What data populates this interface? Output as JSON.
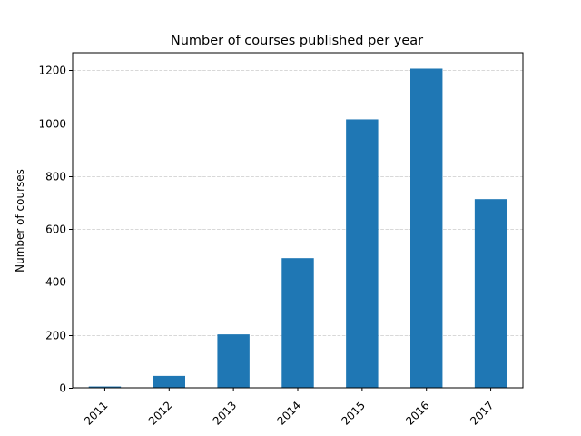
{
  "chart_data": {
    "type": "bar",
    "title": "Number of courses published per year",
    "xlabel": "",
    "ylabel": "Number of courses",
    "categories": [
      "2011",
      "2012",
      "2013",
      "2014",
      "2015",
      "2016",
      "2017"
    ],
    "values": [
      5,
      45,
      202,
      490,
      1014,
      1206,
      713
    ],
    "ylim": [
      0,
      1266
    ],
    "yticks": [
      0,
      200,
      400,
      600,
      800,
      1000,
      1200
    ],
    "grid": "y-dashed",
    "bar_color": "#1f77b4",
    "grid_color": "#cccccc"
  }
}
